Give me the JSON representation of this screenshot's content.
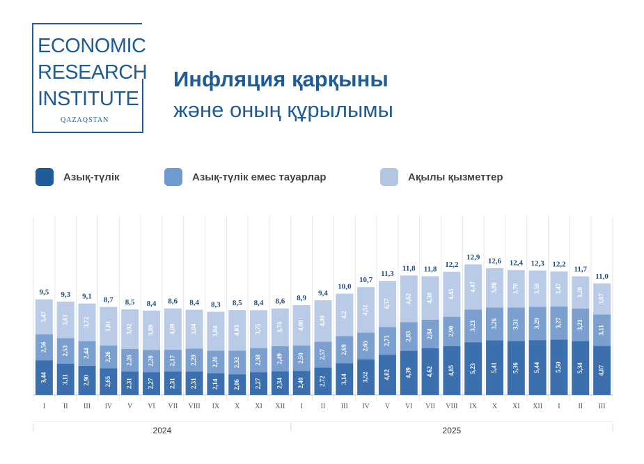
{
  "logo": {
    "lines": [
      "ECONOMIC",
      "RESEARCH",
      "INSTITUTE"
    ],
    "sub": "QAZAQSTAN",
    "color": "#1e5b97"
  },
  "title": {
    "line1": "Инфляция қарқыны",
    "line2": "және оның құрылымы"
  },
  "chart_data": {
    "type": "bar",
    "stacked": true,
    "categories": [
      "I",
      "II",
      "III",
      "IV",
      "V",
      "VI",
      "VII",
      "VIII",
      "IX",
      "X",
      "XI",
      "XII",
      "I",
      "II",
      "III",
      "IV",
      "V",
      "VI",
      "VII",
      "VIII",
      "IX",
      "X",
      "XI",
      "XII",
      "I",
      "II",
      "III"
    ],
    "years": [
      {
        "label": "2024",
        "from": 0,
        "to": 12
      },
      {
        "label": "2025",
        "from": 12,
        "to": 27
      }
    ],
    "totals": [
      "9,5",
      "9,3",
      "9,1",
      "8,7",
      "8,5",
      "8,4",
      "8,6",
      "8,4",
      "8,3",
      "8,5",
      "8,4",
      "8,6",
      "8,9",
      "9,4",
      "10,0",
      "10,7",
      "11,3",
      "11,8",
      "11,8",
      "12,2",
      "12,9",
      "12,6",
      "12,4",
      "12,3",
      "12,2",
      "11,7",
      "11,0"
    ],
    "series": [
      {
        "name": "Азық-түлік",
        "color": "#3c6fae",
        "legend_color": "#1f5c99",
        "values": [
          3.44,
          3.11,
          2.9,
          2.65,
          2.31,
          2.27,
          2.31,
          2.31,
          2.14,
          2.06,
          2.27,
          2.34,
          2.4,
          2.72,
          3.14,
          3.52,
          4.02,
          4.39,
          4.62,
          4.85,
          5.23,
          5.41,
          5.36,
          5.44,
          5.5,
          5.34,
          4.87
        ],
        "labels": [
          "3,44",
          "3,11",
          "2,90",
          "2,65",
          "2,31",
          "2,27",
          "2,31",
          "2,31",
          "2,14",
          "2,06",
          "2,27",
          "2,34",
          "2,40",
          "2,72",
          "3,14",
          "3,52",
          "4,02",
          "4,39",
          "4,62",
          "4,85",
          "5,23",
          "5,41",
          "5,36",
          "5,44",
          "5,50",
          "5,34",
          "4,87"
        ]
      },
      {
        "name": "Азық-түлік емес тауарлар",
        "color": "#7b9fcf",
        "legend_color": "#6f9ad0",
        "values": [
          2.56,
          2.53,
          2.44,
          2.26,
          2.26,
          2.2,
          2.17,
          2.29,
          2.26,
          2.32,
          2.38,
          2.49,
          2.5,
          2.57,
          2.69,
          2.65,
          2.71,
          2.83,
          2.84,
          2.9,
          3.23,
          3.26,
          3.31,
          3.29,
          3.27,
          3.21,
          3.11
        ],
        "labels": [
          "2,56",
          "2,53",
          "2,44",
          "2,26",
          "2,26",
          "2,20",
          "2,17",
          "2,29",
          "2,26",
          "2,32",
          "2,38",
          "2,49",
          "2,50",
          "2,57",
          "2,69",
          "2,65",
          "2,71",
          "2,83",
          "2,84",
          "2,90",
          "3,23",
          "3,26",
          "3,31",
          "3,29",
          "3,27",
          "3,21",
          "3,11"
        ]
      },
      {
        "name": "Ақылы қызметтер",
        "color": "#b9cbe6",
        "legend_color": "#b3c6e4",
        "values": [
          3.47,
          3.61,
          3.72,
          3.81,
          3.92,
          3.89,
          4.09,
          3.84,
          3.84,
          4.03,
          3.75,
          3.74,
          4.0,
          4.09,
          4.2,
          4.51,
          4.57,
          4.62,
          4.3,
          4.45,
          4.47,
          3.88,
          3.7,
          3.59,
          3.47,
          3.2,
          3.07
        ],
        "labels": [
          "3,47",
          "3,61",
          "3,72",
          "3,81",
          "3,92",
          "3,89",
          "4,09",
          "3,84",
          "3,84",
          "4,03",
          "3,75",
          "3,74",
          "4,00",
          "4,09",
          "4,2",
          "4,51",
          "4,57",
          "4,62",
          "4,30",
          "4,45",
          "4,47",
          "3,88",
          "3,70",
          "3,59",
          "3,47",
          "3,20",
          "3,07"
        ]
      }
    ],
    "ylim": [
      0,
      13
    ]
  }
}
